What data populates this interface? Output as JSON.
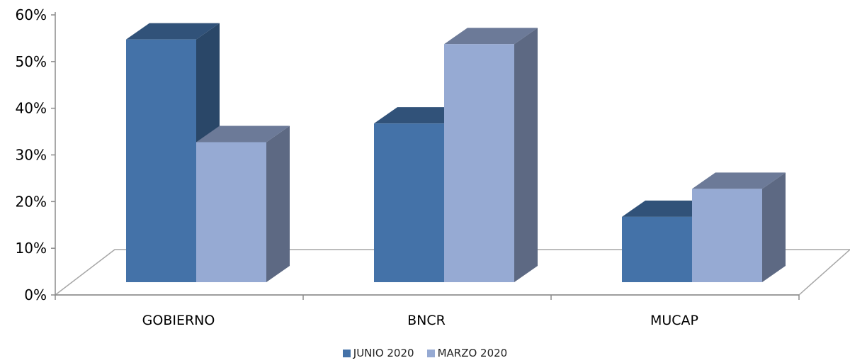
{
  "chart_data": {
    "type": "bar",
    "categories": [
      "GOBIERNO",
      "BNCR",
      "MUCAP"
    ],
    "series": [
      {
        "name": "JUNIO 2020",
        "values": [
          52,
          34,
          14
        ],
        "color": "#4472A8"
      },
      {
        "name": "MARZO 2020",
        "values": [
          30,
          51,
          20
        ],
        "color": "#96AAD3"
      }
    ],
    "y_ticks": [
      "0%",
      "10%",
      "20%",
      "30%",
      "40%",
      "50%",
      "60%"
    ],
    "ylim": [
      0,
      60
    ],
    "grid": false,
    "legend_position": "bottom",
    "style": "3d-clustered-column"
  }
}
